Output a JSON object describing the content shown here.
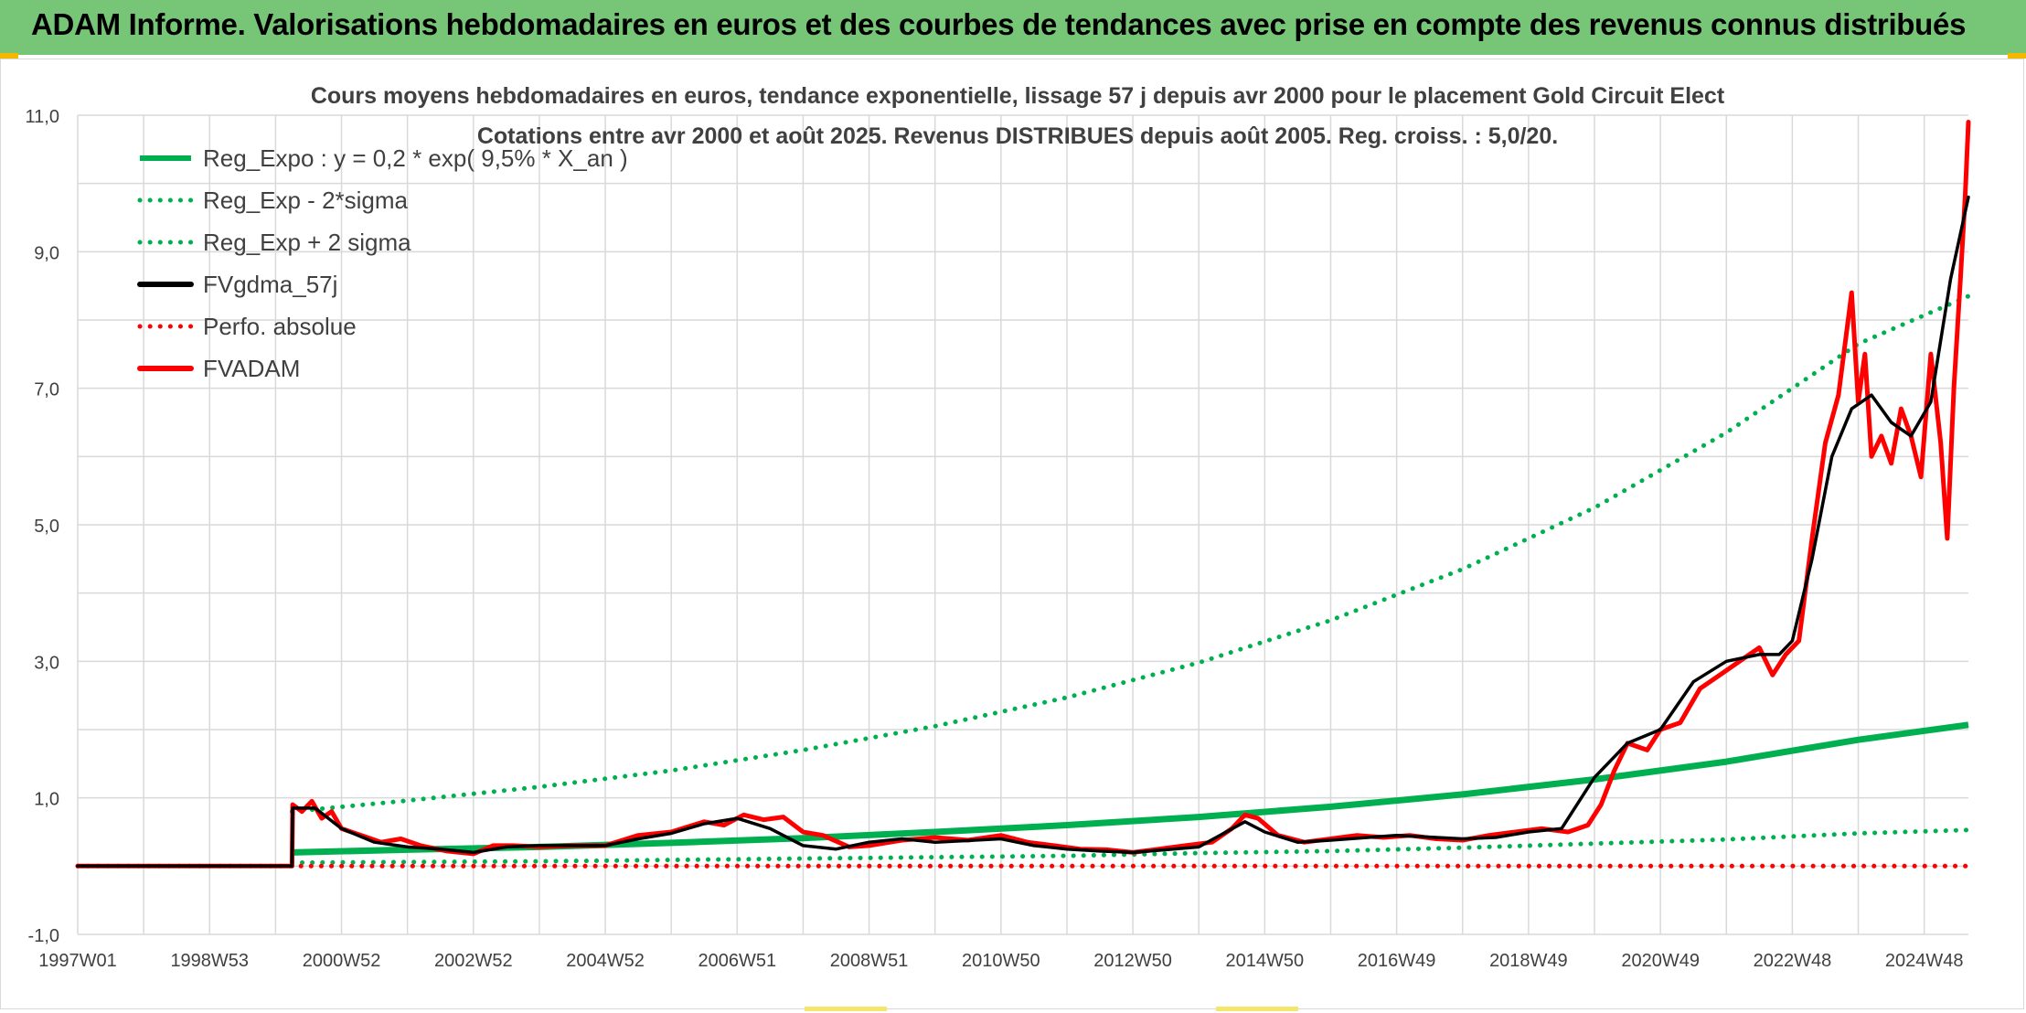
{
  "header": {
    "title": "ADAM Informe. Valorisations hebdomadaires en euros et des courbes de tendances avec prise en compte des revenus connus distribués"
  },
  "colors": {
    "header_bg": "#77c577",
    "green": "#00b050",
    "black": "#000000",
    "red": "#ff0000",
    "grid": "#d9d9d9"
  },
  "chart_data": {
    "type": "line",
    "title": "Cours moyens hebdomadaires en euros, tendance exponentielle, lissage 57 j depuis avr 2000 pour le placement Gold Circuit Elect",
    "subtitle": "Cotations entre avr 2000 et août 2025. Revenus DISTRIBUES depuis août 2005. Reg. croiss. : 5,0/20.",
    "xlabel": "",
    "ylabel": "",
    "ylim": [
      -1,
      11
    ],
    "yticks": [
      -1,
      1,
      3,
      5,
      7,
      9,
      11
    ],
    "ytick_labels": [
      "-1,0",
      "1,0",
      "3,0",
      "5,0",
      "7,0",
      "9,0",
      "11,0"
    ],
    "x_range": [
      1997.0,
      2025.67
    ],
    "xtick_labels": [
      "1997W01",
      "1998W53",
      "2000W52",
      "2002W52",
      "2004W52",
      "2006W51",
      "2008W51",
      "2010W50",
      "2012W50",
      "2014W50",
      "2016W49",
      "2018W49",
      "2020W49",
      "2022W48",
      "2024W48"
    ],
    "xtick_years": [
      1997.0,
      1999.0,
      2001.0,
      2003.0,
      2005.0,
      2007.0,
      2009.0,
      2011.0,
      2013.0,
      2015.0,
      2017.0,
      2019.0,
      2021.0,
      2023.0,
      2025.0
    ],
    "grid": true,
    "legend_position": "top-left",
    "series": [
      {
        "name": "Reg_Expo : y = 0,2 * exp( 9,5% *  X_an )",
        "style": "solid",
        "color": "#00b050",
        "x": [
          2000.25,
          2002,
          2004,
          2006,
          2008,
          2010,
          2012,
          2014,
          2016,
          2018,
          2020,
          2022,
          2024,
          2025.67
        ],
        "y": [
          0.2,
          0.24,
          0.28,
          0.34,
          0.41,
          0.5,
          0.6,
          0.72,
          0.87,
          1.05,
          1.27,
          1.53,
          1.85,
          2.07
        ]
      },
      {
        "name": "Reg_Exp - 2*sigma",
        "style": "dotted",
        "color": "#00b050",
        "x": [
          2000.25,
          2002,
          2004,
          2006,
          2008,
          2010,
          2012,
          2014,
          2016,
          2018,
          2020,
          2022,
          2024,
          2025.67
        ],
        "y": [
          0.05,
          0.06,
          0.07,
          0.09,
          0.11,
          0.13,
          0.15,
          0.19,
          0.22,
          0.27,
          0.33,
          0.39,
          0.48,
          0.53
        ]
      },
      {
        "name": "Reg_Exp + 2 sigma",
        "style": "dotted",
        "color": "#00b050",
        "x": [
          2000.25,
          2002,
          2004,
          2006,
          2008,
          2010,
          2012,
          2014,
          2016,
          2018,
          2020,
          2022,
          2024,
          2025.67
        ],
        "y": [
          0.8,
          0.96,
          1.16,
          1.4,
          1.7,
          2.05,
          2.47,
          2.98,
          3.6,
          4.35,
          5.25,
          6.35,
          7.65,
          8.35
        ]
      },
      {
        "name": "FVgdma_57j",
        "style": "solid",
        "color": "#000000",
        "x": [
          1997.0,
          2000.25,
          2000.26,
          2000.6,
          2001.0,
          2001.5,
          2002.0,
          2002.5,
          2003.0,
          2003.5,
          2004.0,
          2005.0,
          2005.5,
          2006.0,
          2006.5,
          2007.0,
          2007.5,
          2008.0,
          2008.5,
          2009.0,
          2009.5,
          2010.0,
          2011.0,
          2011.5,
          2012.0,
          2012.5,
          2013.0,
          2014.0,
          2014.7,
          2015.0,
          2015.5,
          2016.0,
          2017.0,
          2018.0,
          2018.5,
          2019.0,
          2019.5,
          2020.0,
          2020.5,
          2021.0,
          2021.5,
          2022.0,
          2022.5,
          2022.8,
          2023.0,
          2023.3,
          2023.6,
          2023.9,
          2024.2,
          2024.5,
          2024.8,
          2025.1,
          2025.4,
          2025.67
        ],
        "y": [
          0.0,
          0.0,
          0.85,
          0.85,
          0.55,
          0.35,
          0.28,
          0.25,
          0.2,
          0.28,
          0.3,
          0.3,
          0.4,
          0.48,
          0.62,
          0.7,
          0.55,
          0.3,
          0.25,
          0.35,
          0.4,
          0.35,
          0.4,
          0.3,
          0.25,
          0.22,
          0.2,
          0.28,
          0.65,
          0.5,
          0.35,
          0.38,
          0.45,
          0.4,
          0.42,
          0.5,
          0.55,
          1.3,
          1.8,
          2.0,
          2.7,
          3.0,
          3.1,
          3.1,
          3.3,
          4.5,
          6.0,
          6.7,
          6.9,
          6.5,
          6.3,
          6.8,
          8.6,
          9.8
        ]
      },
      {
        "name": "Perfo. absolue",
        "style": "dotted",
        "color": "#ff0000",
        "x": [
          1997.0,
          2025.67
        ],
        "y": [
          0.0,
          0.0
        ]
      },
      {
        "name": "FVADAM",
        "style": "solid",
        "color": "#ff0000",
        "x": [
          1997.0,
          2000.25,
          2000.26,
          2000.4,
          2000.55,
          2000.7,
          2000.85,
          2001.0,
          2001.3,
          2001.6,
          2001.9,
          2002.2,
          2002.6,
          2003.0,
          2003.3,
          2003.6,
          2004.0,
          2004.5,
          2005.0,
          2005.5,
          2006.0,
          2006.5,
          2006.8,
          2007.1,
          2007.4,
          2007.7,
          2008.0,
          2008.3,
          2008.7,
          2009.0,
          2009.5,
          2010.0,
          2010.5,
          2011.0,
          2011.4,
          2011.8,
          2012.2,
          2012.6,
          2013.0,
          2013.4,
          2013.8,
          2014.2,
          2014.5,
          2014.7,
          2014.9,
          2015.2,
          2015.6,
          2016.0,
          2016.4,
          2016.8,
          2017.2,
          2017.6,
          2018.0,
          2018.4,
          2018.8,
          2019.2,
          2019.6,
          2019.9,
          2020.1,
          2020.3,
          2020.5,
          2020.8,
          2021.0,
          2021.3,
          2021.6,
          2021.9,
          2022.2,
          2022.5,
          2022.7,
          2022.9,
          2023.1,
          2023.3,
          2023.5,
          2023.7,
          2023.9,
          2024.0,
          2024.1,
          2024.2,
          2024.35,
          2024.5,
          2024.65,
          2024.8,
          2024.95,
          2025.1,
          2025.25,
          2025.35,
          2025.45,
          2025.55,
          2025.62,
          2025.67
        ],
        "y": [
          0.0,
          0.0,
          0.9,
          0.8,
          0.95,
          0.7,
          0.8,
          0.55,
          0.45,
          0.35,
          0.4,
          0.3,
          0.22,
          0.18,
          0.3,
          0.3,
          0.28,
          0.3,
          0.3,
          0.45,
          0.5,
          0.65,
          0.6,
          0.75,
          0.68,
          0.72,
          0.5,
          0.45,
          0.28,
          0.3,
          0.38,
          0.42,
          0.38,
          0.45,
          0.35,
          0.3,
          0.25,
          0.24,
          0.2,
          0.25,
          0.3,
          0.35,
          0.55,
          0.75,
          0.7,
          0.45,
          0.35,
          0.4,
          0.45,
          0.42,
          0.45,
          0.4,
          0.38,
          0.45,
          0.5,
          0.55,
          0.5,
          0.6,
          0.9,
          1.4,
          1.8,
          1.7,
          2.0,
          2.1,
          2.6,
          2.8,
          3.0,
          3.2,
          2.8,
          3.1,
          3.3,
          4.8,
          6.2,
          6.9,
          8.4,
          6.8,
          7.5,
          6.0,
          6.3,
          5.9,
          6.7,
          6.3,
          5.7,
          7.5,
          6.2,
          4.8,
          7.0,
          8.6,
          9.8,
          10.9
        ]
      }
    ]
  }
}
